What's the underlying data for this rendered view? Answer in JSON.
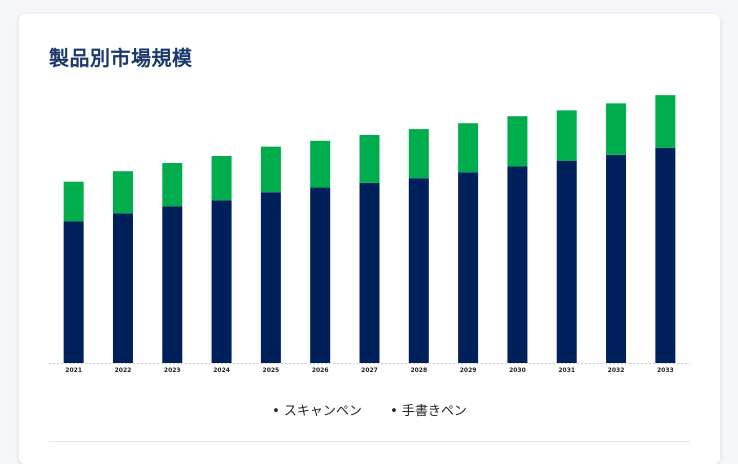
{
  "header": {
    "title": "製品別市場規模"
  },
  "colors": {
    "series_1": "#00205b",
    "series_2": "#00ad4c",
    "axis": "#cccccc"
  },
  "chart_data": {
    "type": "bar",
    "stacked": true,
    "title": "製品別市場規模",
    "xlabel": "",
    "ylabel": "",
    "categories": [
      "2021",
      "2022",
      "2023",
      "2024",
      "2025",
      "2026",
      "2027",
      "2028",
      "2029",
      "2030",
      "2031",
      "2032",
      "2033"
    ],
    "series": [
      {
        "name": "スキャンペン",
        "values": [
          121,
          128,
          134,
          139,
          146,
          150,
          154,
          158,
          163,
          168,
          173,
          178,
          184
        ]
      },
      {
        "name": "手書きペン",
        "values": [
          34,
          36,
          37,
          38,
          39,
          40,
          41,
          42,
          42,
          43,
          43,
          44,
          45
        ]
      }
    ],
    "ylim": [
      0,
      230
    ],
    "grid": false,
    "legend": "bottom-center"
  }
}
